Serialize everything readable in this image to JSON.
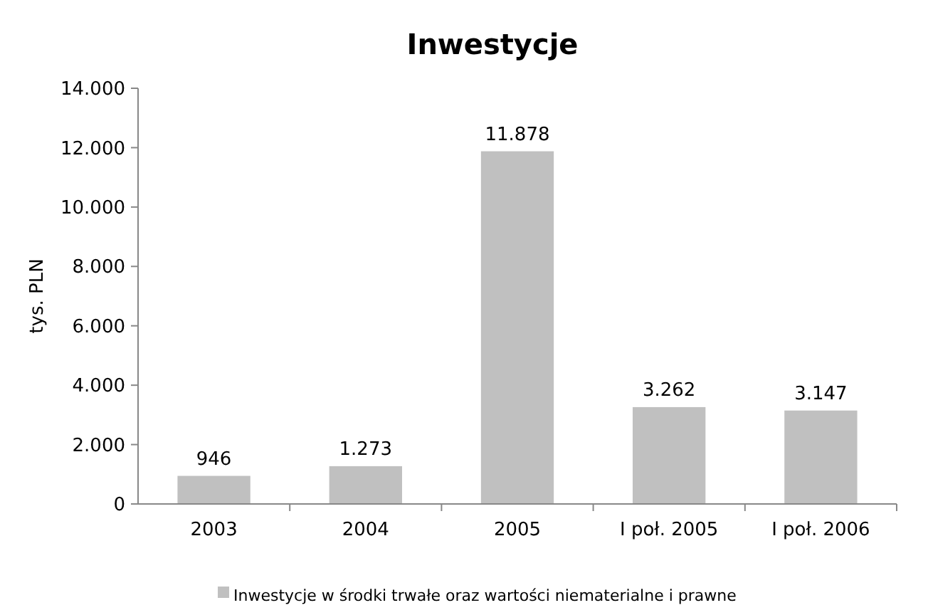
{
  "chart_data": {
    "type": "bar",
    "title": "Inwestycje",
    "ylabel": "tys. PLN",
    "categories": [
      "2003",
      "2004",
      "2005",
      "I poł. 2005",
      "I poł. 2006"
    ],
    "series": [
      {
        "name": "Inwestycje w środki trwałe oraz wartości niematerialne i prawne",
        "color": "#c0c0c0",
        "values": [
          946,
          1273,
          11878,
          3262,
          3147
        ]
      }
    ],
    "value_labels": [
      "946",
      "1.273",
      "11.878",
      "3.262",
      "3.147"
    ],
    "ylim": [
      0,
      14000
    ],
    "yticks": [
      0,
      {
        "value": 2000,
        "label": "2.000"
      },
      {
        "value": 4000,
        "label": "4.000"
      },
      {
        "value": 6000,
        "label": "6.000"
      },
      {
        "value": 8000,
        "label": "8.000"
      },
      {
        "value": 10000,
        "label": "10.000"
      },
      {
        "value": 12000,
        "label": "12.000"
      },
      {
        "value": 14000,
        "label": "14.000"
      }
    ],
    "grid": false,
    "legend": "bottom"
  }
}
